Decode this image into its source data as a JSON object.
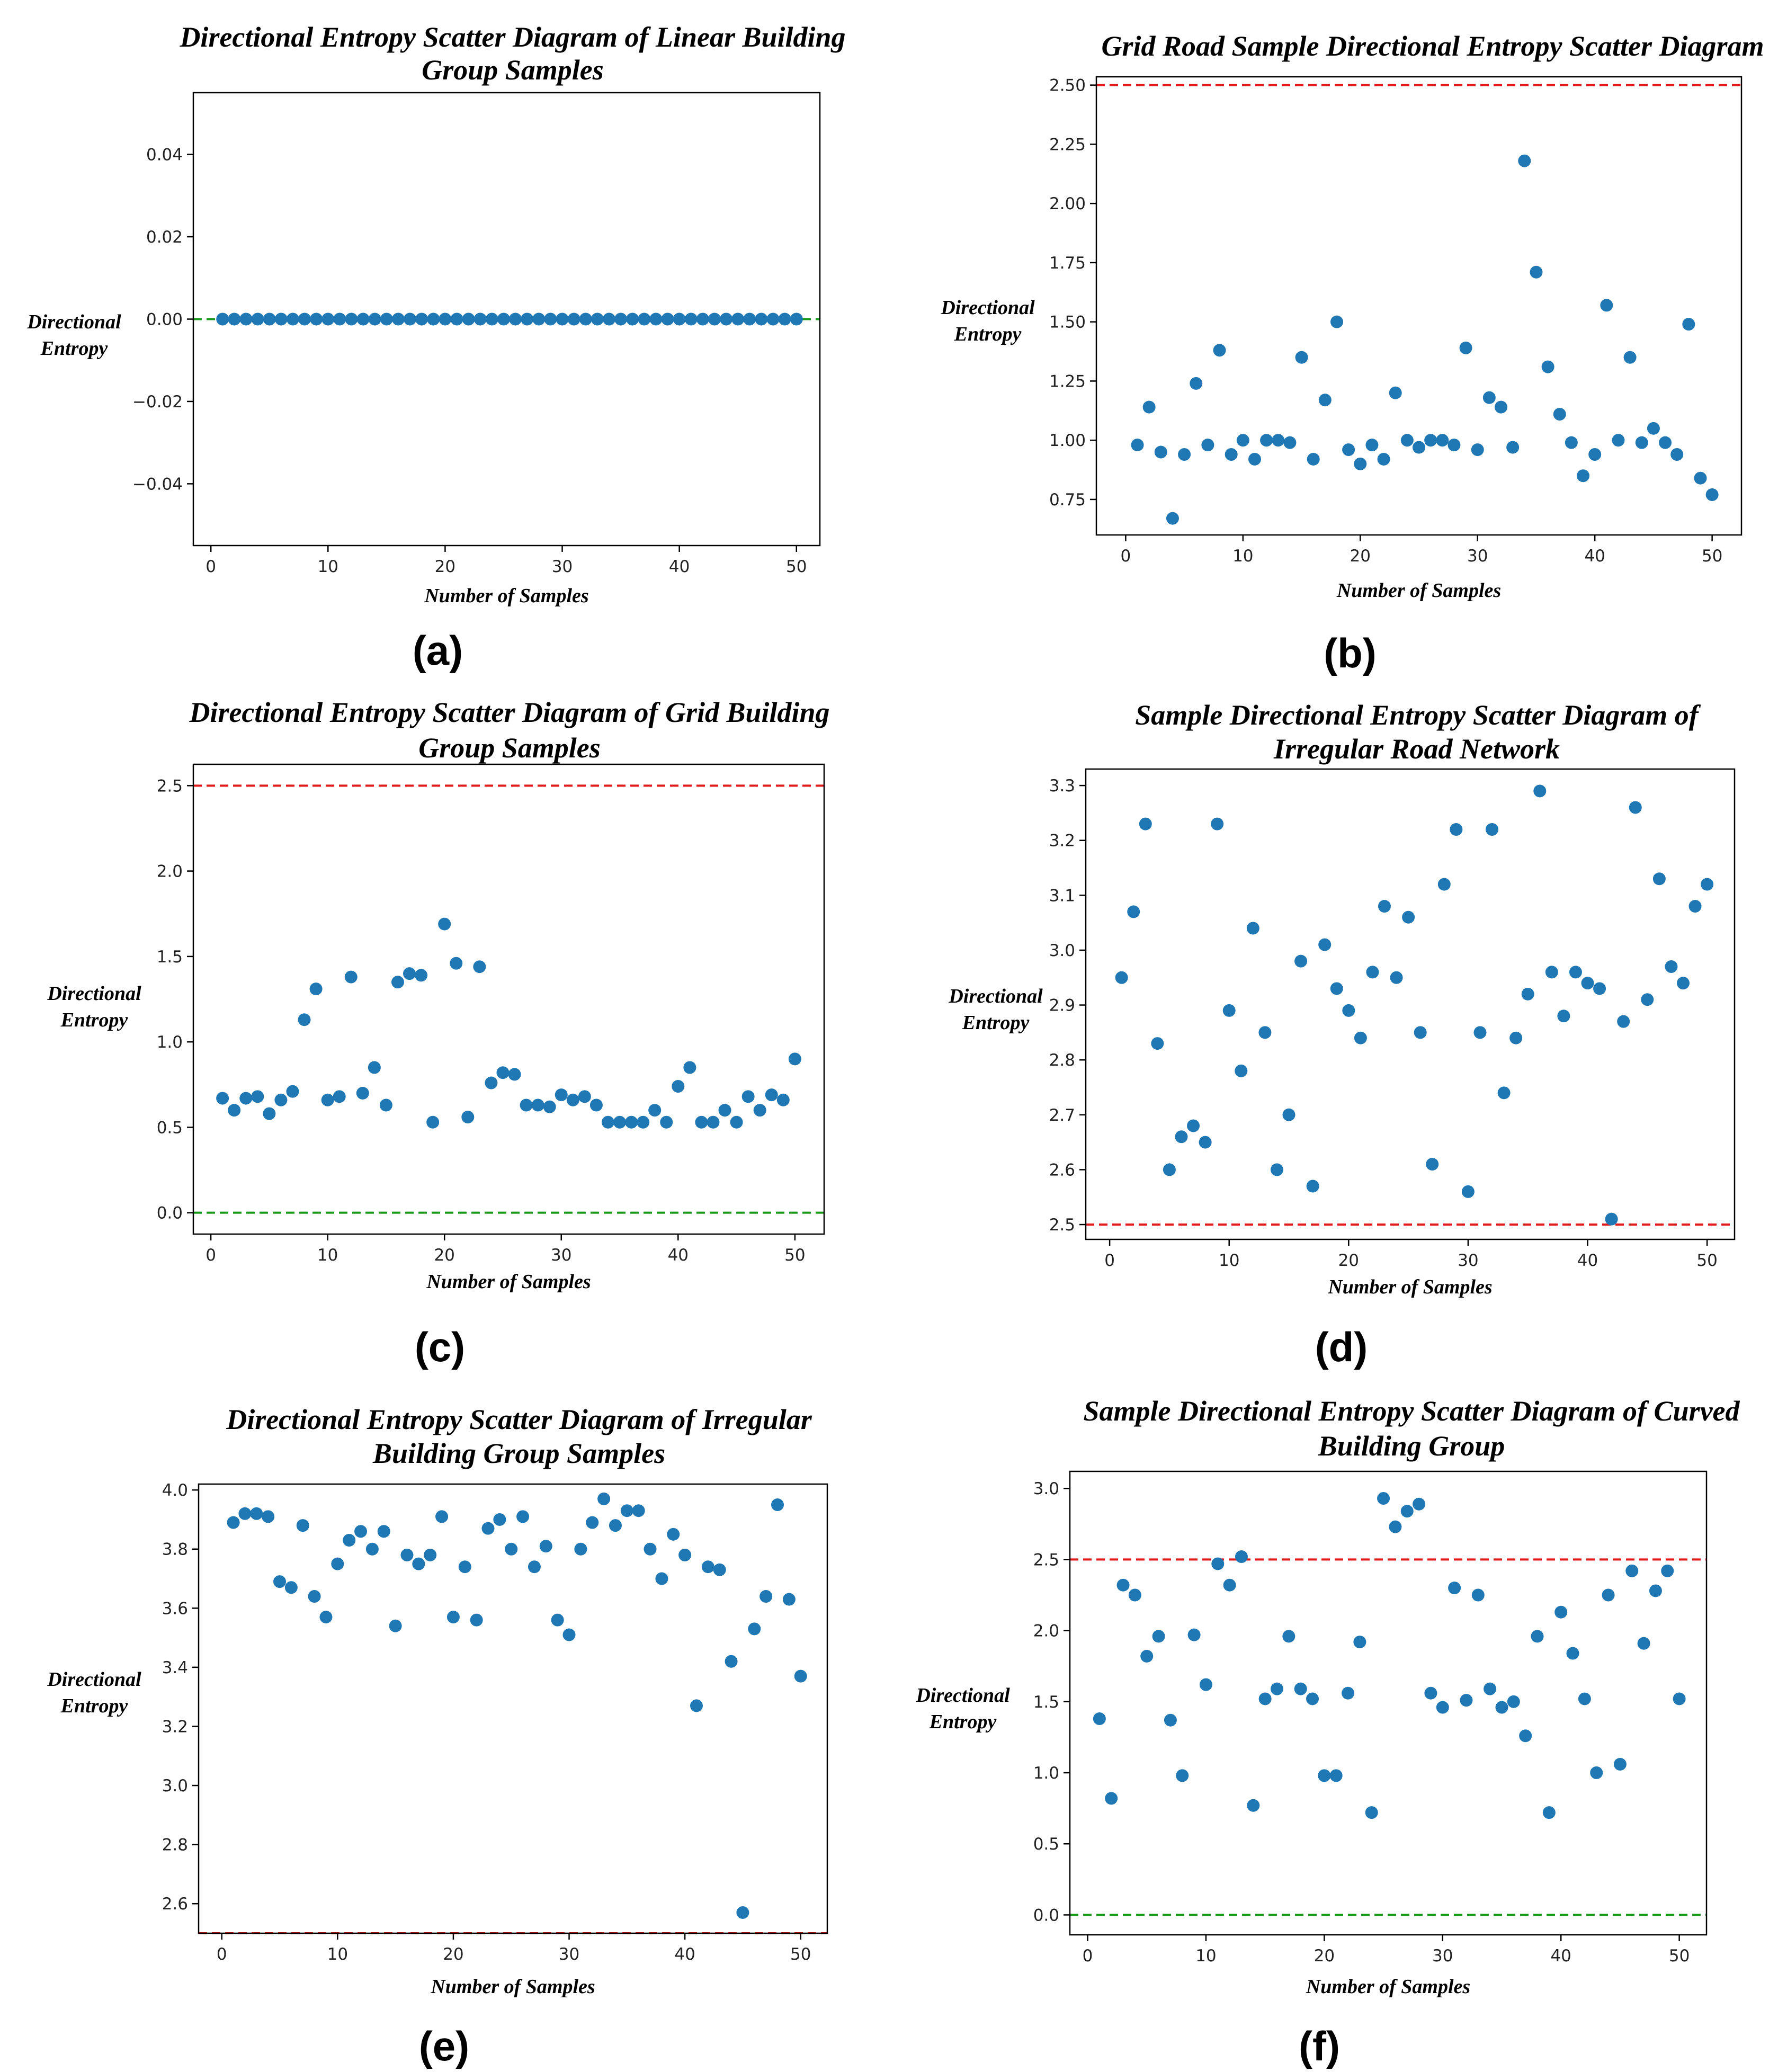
{
  "colors": {
    "point": "#1f77b4",
    "upper_line": "#e31a1c",
    "lower_line": "#1a9a1a",
    "frame": "#000000"
  },
  "chart_data": [
    {
      "panel_label": "(a)",
      "type": "scatter",
      "title": [
        "Directional Entropy Scatter Diagram of Linear Building",
        "Group Samples"
      ],
      "xlabel": "Number of Samples",
      "ylabel": [
        "Directional",
        "Entropy"
      ],
      "xlim": [
        -1.5,
        52
      ],
      "ylim": [
        -0.055,
        0.055
      ],
      "xticks": [
        0,
        10,
        20,
        30,
        40,
        50
      ],
      "yticks": [
        -0.04,
        -0.02,
        0.0,
        0.02,
        0.04
      ],
      "ytick_labels": [
        "−0.04",
        "−0.02",
        "0.00",
        "0.02",
        "0.04"
      ],
      "hlines": [
        {
          "y": 0.0,
          "color": "green"
        }
      ],
      "x": [
        1,
        2,
        3,
        4,
        5,
        6,
        7,
        8,
        9,
        10,
        11,
        12,
        13,
        14,
        15,
        16,
        17,
        18,
        19,
        20,
        21,
        22,
        23,
        24,
        25,
        26,
        27,
        28,
        29,
        30,
        31,
        32,
        33,
        34,
        35,
        36,
        37,
        38,
        39,
        40,
        41,
        42,
        43,
        44,
        45,
        46,
        47,
        48,
        49,
        50
      ],
      "y": [
        0,
        0,
        0,
        0,
        0,
        0,
        0,
        0,
        0,
        0,
        0,
        0,
        0,
        0,
        0,
        0,
        0,
        0,
        0,
        0,
        0,
        0,
        0,
        0,
        0,
        0,
        0,
        0,
        0,
        0,
        0,
        0,
        0,
        0,
        0,
        0,
        0,
        0,
        0,
        0,
        0,
        0,
        0,
        0,
        0,
        0,
        0,
        0,
        0,
        0
      ]
    },
    {
      "panel_label": "(b)",
      "type": "scatter",
      "title": [
        "Grid Road Sample Directional Entropy Scatter Diagram"
      ],
      "xlabel": "Number of Samples",
      "ylabel": [
        "Directional",
        "Entropy"
      ],
      "xlim": [
        -2.5,
        52.5
      ],
      "ylim": [
        0.6,
        2.535
      ],
      "xticks": [
        0,
        10,
        20,
        30,
        40,
        50
      ],
      "yticks": [
        0.75,
        1.0,
        1.25,
        1.5,
        1.75,
        2.0,
        2.25,
        2.5
      ],
      "ytick_labels": [
        "0.75",
        "1.00",
        "1.25",
        "1.50",
        "1.75",
        "2.00",
        "2.25",
        "2.50"
      ],
      "hlines": [
        {
          "y": 2.5,
          "color": "red"
        }
      ],
      "x": [
        1,
        2,
        3,
        4,
        5,
        6,
        7,
        8,
        9,
        10,
        11,
        12,
        13,
        14,
        15,
        16,
        17,
        18,
        19,
        20,
        21,
        22,
        23,
        24,
        25,
        26,
        27,
        28,
        29,
        30,
        31,
        32,
        33,
        34,
        35,
        36,
        37,
        38,
        39,
        40,
        41,
        42,
        43,
        44,
        45,
        46,
        47,
        48,
        49,
        50
      ],
      "y": [
        0.98,
        1.14,
        0.95,
        0.67,
        0.94,
        1.24,
        0.98,
        1.38,
        0.94,
        1.0,
        0.92,
        1.0,
        1.0,
        0.99,
        1.35,
        0.92,
        1.17,
        1.5,
        0.96,
        0.9,
        0.98,
        0.92,
        1.2,
        1.0,
        0.97,
        1.0,
        1.0,
        0.98,
        1.39,
        0.96,
        1.18,
        1.14,
        0.97,
        2.18,
        1.71,
        1.31,
        1.11,
        0.99,
        0.85,
        0.94,
        1.57,
        1.0,
        1.35,
        0.99,
        1.05,
        0.99,
        0.94,
        1.49,
        0.84,
        0.77
      ]
    },
    {
      "panel_label": "(c)",
      "type": "scatter",
      "title": [
        "Directional Entropy Scatter Diagram of Grid Building",
        "Group Samples"
      ],
      "xlabel": "Number of Samples",
      "ylabel": [
        "Directional",
        "Entropy"
      ],
      "xlim": [
        -1.5,
        52.5
      ],
      "ylim": [
        -0.125,
        2.625
      ],
      "xticks": [
        0,
        10,
        20,
        30,
        40,
        50
      ],
      "yticks": [
        0.0,
        0.5,
        1.0,
        1.5,
        2.0,
        2.5
      ],
      "ytick_labels": [
        "0.0",
        "0.5",
        "1.0",
        "1.5",
        "2.0",
        "2.5"
      ],
      "hlines": [
        {
          "y": 2.5,
          "color": "red"
        },
        {
          "y": 0.0,
          "color": "green"
        }
      ],
      "x": [
        1,
        2,
        3,
        4,
        5,
        6,
        7,
        8,
        9,
        10,
        11,
        12,
        13,
        14,
        15,
        16,
        17,
        18,
        19,
        20,
        21,
        22,
        23,
        24,
        25,
        26,
        27,
        28,
        29,
        30,
        31,
        32,
        33,
        34,
        35,
        36,
        37,
        38,
        39,
        40,
        41,
        42,
        43,
        44,
        45,
        46,
        47,
        48,
        49,
        50
      ],
      "y": [
        0.67,
        0.6,
        0.67,
        0.68,
        0.58,
        0.66,
        0.71,
        1.13,
        1.31,
        0.66,
        0.68,
        1.38,
        0.7,
        0.85,
        0.63,
        1.35,
        1.4,
        1.39,
        0.53,
        1.69,
        1.46,
        0.56,
        1.44,
        0.76,
        0.82,
        0.81,
        0.63,
        0.63,
        0.62,
        0.69,
        0.66,
        0.68,
        0.63,
        0.53,
        0.53,
        0.53,
        0.53,
        0.6,
        0.53,
        0.74,
        0.85,
        0.53,
        0.53,
        0.6,
        0.53,
        0.68,
        0.6,
        0.69,
        0.66,
        0.9
      ]
    },
    {
      "panel_label": "(d)",
      "type": "scatter",
      "title": [
        "Sample Directional Entropy Scatter Diagram of",
        "Irregular Road Network"
      ],
      "xlabel": "Number of Samples",
      "ylabel": [
        "Directional",
        "Entropy"
      ],
      "xlim": [
        -2.0,
        52.3
      ],
      "ylim": [
        2.473,
        3.33
      ],
      "xticks": [
        0,
        10,
        20,
        30,
        40,
        50
      ],
      "yticks": [
        2.5,
        2.6,
        2.7,
        2.8,
        2.9,
        3.0,
        3.1,
        3.2,
        3.3
      ],
      "ytick_labels": [
        "2.5",
        "2.6",
        "2.7",
        "2.8",
        "2.9",
        "3.0",
        "3.1",
        "3.2",
        "3.3"
      ],
      "hlines": [
        {
          "y": 2.5,
          "color": "red"
        }
      ],
      "x": [
        1,
        2,
        3,
        4,
        5,
        6,
        7,
        8,
        9,
        10,
        11,
        12,
        13,
        14,
        15,
        16,
        17,
        18,
        19,
        20,
        21,
        22,
        23,
        24,
        25,
        26,
        27,
        28,
        29,
        30,
        31,
        32,
        33,
        34,
        35,
        36,
        37,
        38,
        39,
        40,
        41,
        42,
        43,
        44,
        45,
        46,
        47,
        48,
        49,
        50
      ],
      "y": [
        2.95,
        3.07,
        3.23,
        2.83,
        2.6,
        2.66,
        2.68,
        2.65,
        3.23,
        2.89,
        2.78,
        3.04,
        2.85,
        2.6,
        2.7,
        2.98,
        2.57,
        3.01,
        2.93,
        2.89,
        2.84,
        2.96,
        3.08,
        2.95,
        3.06,
        2.85,
        2.61,
        3.12,
        3.22,
        2.56,
        2.85,
        3.22,
        2.74,
        2.84,
        2.92,
        3.29,
        2.96,
        2.88,
        2.96,
        2.94,
        2.93,
        2.51,
        2.87,
        3.26,
        2.91,
        3.13,
        2.97,
        2.94,
        3.08,
        3.12
      ]
    },
    {
      "panel_label": "(e)",
      "type": "scatter",
      "title": [
        "Directional Entropy Scatter Diagram of Irregular",
        "Building Group Samples"
      ],
      "xlabel": "Number of Samples",
      "ylabel": [
        "Directional",
        "Entropy"
      ],
      "xlim": [
        -2.0,
        52.3
      ],
      "ylim": [
        2.5,
        4.02
      ],
      "xticks": [
        0,
        10,
        20,
        30,
        40,
        50
      ],
      "yticks": [
        2.6,
        2.8,
        3.0,
        3.2,
        3.4,
        3.6,
        3.8,
        4.0
      ],
      "ytick_labels": [
        "2.6",
        "2.8",
        "3.0",
        "3.2",
        "3.4",
        "3.6",
        "3.8",
        "4.0"
      ],
      "hlines": [
        {
          "y": 2.5,
          "color": "red"
        }
      ],
      "x": [
        1,
        2,
        3,
        4,
        5,
        6,
        7,
        8,
        9,
        10,
        11,
        12,
        13,
        14,
        15,
        16,
        17,
        18,
        19,
        20,
        21,
        22,
        23,
        24,
        25,
        26,
        27,
        28,
        29,
        30,
        31,
        32,
        33,
        34,
        35,
        36,
        37,
        38,
        39,
        40,
        41,
        42,
        43,
        44,
        45,
        46,
        47,
        48,
        49,
        50
      ],
      "y": [
        3.89,
        3.92,
        3.92,
        3.91,
        3.69,
        3.67,
        3.88,
        3.64,
        3.57,
        3.75,
        3.83,
        3.86,
        3.8,
        3.86,
        3.54,
        3.78,
        3.75,
        3.78,
        3.91,
        3.57,
        3.74,
        3.56,
        3.87,
        3.9,
        3.8,
        3.91,
        3.74,
        3.81,
        3.56,
        3.51,
        3.8,
        3.89,
        3.97,
        3.88,
        3.93,
        3.93,
        3.8,
        3.7,
        3.85,
        3.78,
        3.27,
        3.74,
        3.73,
        3.42,
        2.57,
        3.53,
        3.64,
        3.95,
        3.63,
        3.37
      ]
    },
    {
      "panel_label": "(f)",
      "type": "scatter",
      "title": [
        "Sample Directional Entropy Scatter Diagram of Curved",
        "Building Group"
      ],
      "xlabel": "Number of Samples",
      "ylabel": [
        "Directional",
        "Entropy"
      ],
      "xlim": [
        -1.5,
        52.3
      ],
      "ylim": [
        -0.14,
        3.12
      ],
      "xticks": [
        0,
        10,
        20,
        30,
        40,
        50
      ],
      "yticks": [
        0.0,
        0.5,
        1.0,
        1.5,
        2.0,
        2.5,
        3.0
      ],
      "ytick_labels": [
        "0.0",
        "0.5",
        "1.0",
        "1.5",
        "2.0",
        "2.5",
        "3.0"
      ],
      "hlines": [
        {
          "y": 2.5,
          "color": "red"
        },
        {
          "y": 0.0,
          "color": "green"
        }
      ],
      "x": [
        1,
        2,
        3,
        4,
        5,
        6,
        7,
        8,
        9,
        10,
        11,
        12,
        13,
        14,
        15,
        16,
        17,
        18,
        19,
        20,
        21,
        22,
        23,
        24,
        25,
        26,
        27,
        28,
        29,
        30,
        31,
        32,
        33,
        34,
        35,
        36,
        37,
        38,
        39,
        40,
        41,
        42,
        43,
        44,
        45,
        46,
        47,
        48,
        49,
        50
      ],
      "y": [
        1.38,
        0.82,
        2.32,
        2.25,
        1.82,
        1.96,
        1.37,
        0.98,
        1.97,
        1.62,
        2.47,
        2.32,
        2.52,
        0.77,
        1.52,
        1.59,
        1.96,
        1.59,
        1.52,
        0.98,
        0.98,
        1.56,
        1.92,
        0.72,
        2.93,
        2.73,
        2.84,
        2.89,
        1.56,
        1.46,
        2.3,
        1.51,
        2.25,
        1.59,
        1.46,
        1.5,
        1.26,
        1.96,
        0.72,
        2.13,
        1.84,
        1.52,
        1.0,
        2.25,
        1.06,
        2.42,
        1.91,
        2.28,
        2.42,
        1.52
      ]
    }
  ]
}
